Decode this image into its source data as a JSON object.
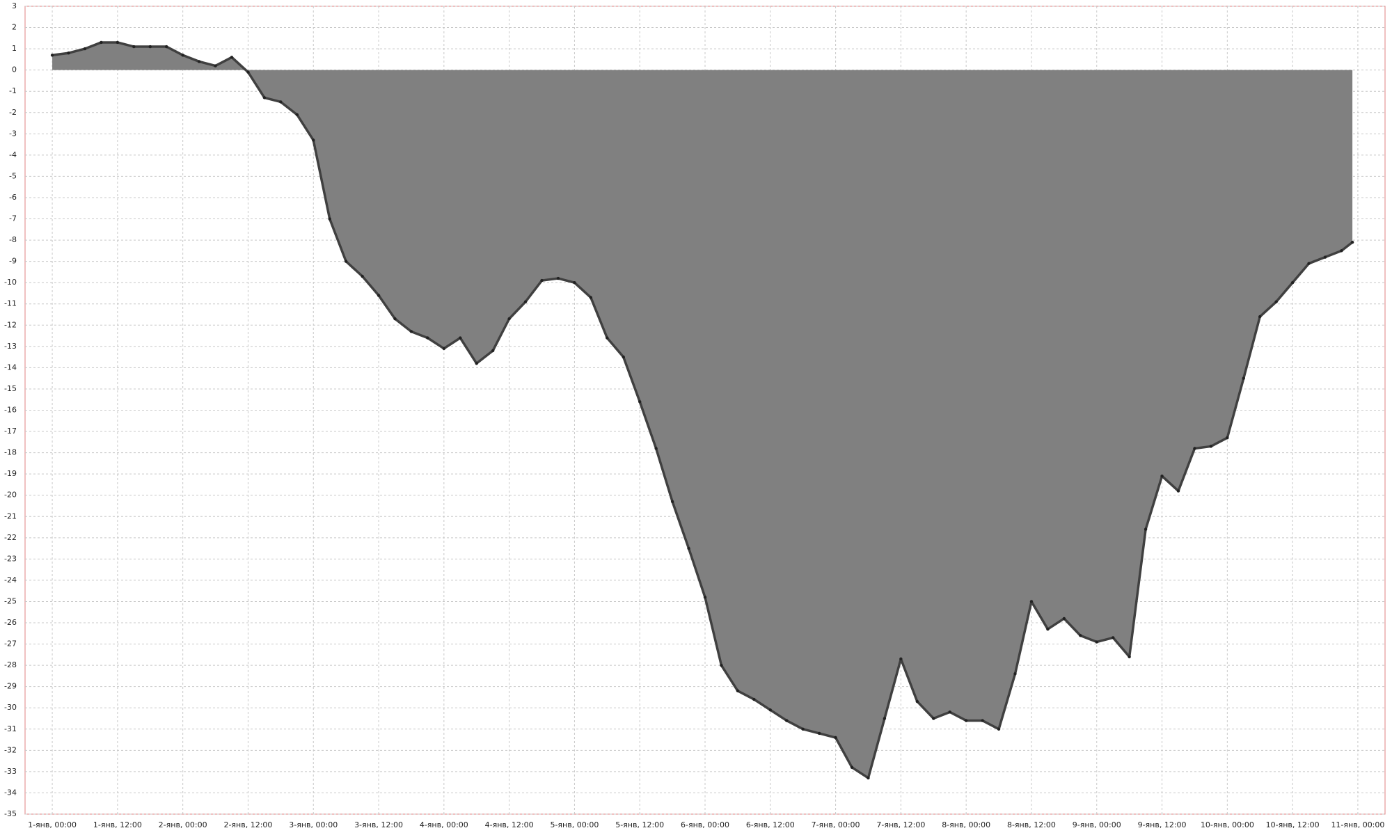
{
  "chart_data": {
    "type": "area",
    "color": "#808080",
    "line_color": "#404040",
    "grid": true,
    "baseline": 0,
    "x": [
      0,
      3,
      6,
      9,
      12,
      15,
      18,
      21,
      24,
      27,
      30,
      33,
      36,
      39,
      42,
      45,
      48,
      51,
      54,
      57,
      60,
      63,
      66,
      69,
      72,
      75,
      78,
      81,
      84,
      87,
      90,
      93,
      96,
      99,
      102,
      105,
      108,
      111,
      114,
      117,
      120,
      123,
      126,
      129,
      132,
      135,
      138,
      141,
      144,
      147,
      150,
      153,
      156,
      159,
      162,
      165,
      168,
      171,
      174,
      177,
      180,
      183,
      186,
      189,
      192,
      195,
      198,
      201,
      204,
      207,
      210,
      213,
      216,
      219,
      222,
      225,
      228,
      231,
      234,
      237,
      239
    ],
    "values": [
      0.7,
      0.8,
      1.0,
      1.3,
      1.3,
      1.1,
      1.1,
      1.1,
      0.7,
      0.4,
      0.2,
      0.6,
      -0.1,
      -1.3,
      -1.5,
      -2.1,
      -3.3,
      -7.0,
      -9.0,
      -9.7,
      -10.6,
      -11.7,
      -12.3,
      -12.6,
      -13.1,
      -12.6,
      -13.8,
      -13.2,
      -11.7,
      -10.9,
      -9.9,
      -9.8,
      -10.0,
      -10.7,
      -12.6,
      -13.5,
      -15.6,
      -17.8,
      -20.3,
      -22.5,
      -24.8,
      -28.0,
      -29.2,
      -29.6,
      -30.1,
      -30.6,
      -31.0,
      -31.2,
      -31.4,
      -32.8,
      -33.3,
      -30.5,
      -27.7,
      -29.7,
      -30.5,
      -30.2,
      -30.6,
      -30.6,
      -31.0,
      -28.4,
      -25.0,
      -26.3,
      -25.8,
      -26.6,
      -26.9,
      -26.7,
      -27.6,
      -21.6,
      -19.1,
      -19.8,
      -17.8,
      -17.7,
      -17.3,
      -14.5,
      -11.6,
      -10.9,
      -10.0,
      -9.1,
      -8.8,
      -8.5,
      -8.1
    ],
    "xlim": [
      -5,
      245
    ],
    "ylim": [
      -35,
      3
    ],
    "yticks": [
      3,
      2,
      1,
      0,
      -1,
      -2,
      -3,
      -4,
      -5,
      -6,
      -7,
      -8,
      -9,
      -10,
      -11,
      -12,
      -13,
      -14,
      -15,
      -16,
      -17,
      -18,
      -19,
      -20,
      -21,
      -22,
      -23,
      -24,
      -25,
      -26,
      -27,
      -28,
      -29,
      -30,
      -31,
      -32,
      -33,
      -34,
      -35
    ],
    "xticks": [
      {
        "value": 0,
        "label": "1-янв, 00:00"
      },
      {
        "value": 12,
        "label": "1-янв, 12:00"
      },
      {
        "value": 24,
        "label": "2-янв, 00:00"
      },
      {
        "value": 36,
        "label": "2-янв, 12:00"
      },
      {
        "value": 48,
        "label": "3-янв, 00:00"
      },
      {
        "value": 60,
        "label": "3-янв, 12:00"
      },
      {
        "value": 72,
        "label": "4-янв, 00:00"
      },
      {
        "value": 84,
        "label": "4-янв, 12:00"
      },
      {
        "value": 96,
        "label": "5-янв, 00:00"
      },
      {
        "value": 108,
        "label": "5-янв, 12:00"
      },
      {
        "value": 120,
        "label": "6-янв, 00:00"
      },
      {
        "value": 132,
        "label": "6-янв, 12:00"
      },
      {
        "value": 144,
        "label": "7-янв, 00:00"
      },
      {
        "value": 156,
        "label": "7-янв, 12:00"
      },
      {
        "value": 168,
        "label": "8-янв, 00:00"
      },
      {
        "value": 180,
        "label": "8-янв, 12:00"
      },
      {
        "value": 192,
        "label": "9-янв, 00:00"
      },
      {
        "value": 204,
        "label": "9-янв, 12:00"
      },
      {
        "value": 216,
        "label": "10-янв, 00:00"
      },
      {
        "value": 228,
        "label": "10-янв, 12:00"
      },
      {
        "value": 240,
        "label": "11-янв, 00:00"
      }
    ]
  }
}
